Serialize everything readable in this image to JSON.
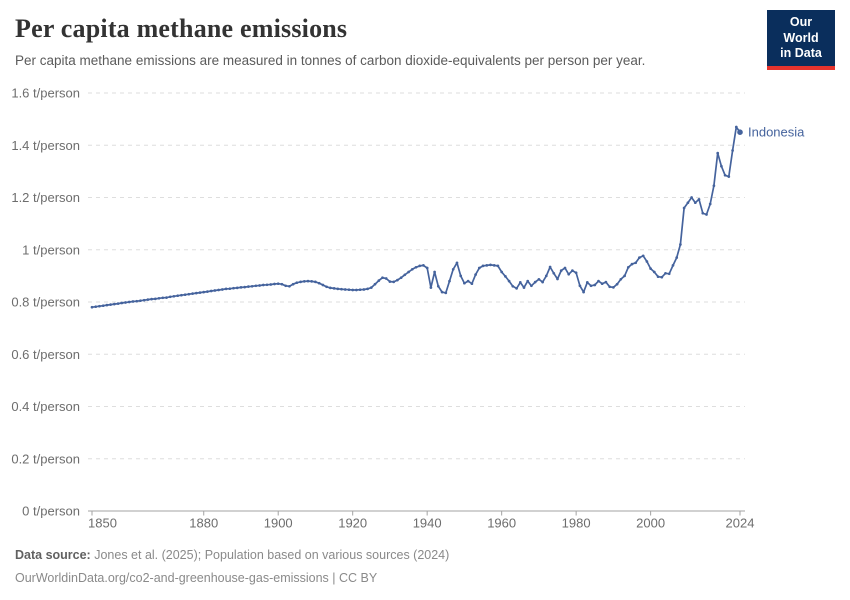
{
  "header": {
    "title": "Per capita methane emissions",
    "subtitle": "Per capita methane emissions are measured in tonnes of carbon dioxide-equivalents per person per year.",
    "logo": {
      "line1": "Our World",
      "line2": "in Data",
      "bg_color": "#0a2e5c",
      "accent_color": "#e5332d"
    }
  },
  "chart_data": {
    "type": "line",
    "title": "Per capita methane emissions",
    "unit": "t/person",
    "xlim": [
      1850,
      2024
    ],
    "ylim": [
      0,
      1.6
    ],
    "grid": "horizontal dashed",
    "grid_color": "#dedede",
    "axis_color": "#a3a3a3",
    "x_ticks": [
      1850,
      1880,
      1900,
      1920,
      1940,
      1960,
      1980,
      2000,
      2024
    ],
    "y_ticks": [
      {
        "value": 0,
        "label": "0 t/person"
      },
      {
        "value": 0.2,
        "label": "0.2 t/person"
      },
      {
        "value": 0.4,
        "label": "0.4 t/person"
      },
      {
        "value": 0.6,
        "label": "0.6 t/person"
      },
      {
        "value": 0.8,
        "label": "0.8 t/person"
      },
      {
        "value": 1,
        "label": "1 t/person"
      },
      {
        "value": 1.2,
        "label": "1.2 t/person"
      },
      {
        "value": 1.4,
        "label": "1.4 t/person"
      },
      {
        "value": 1.6,
        "label": "1.6 t/person"
      }
    ],
    "series": [
      {
        "name": "Indonesia",
        "color": "#45639d",
        "x": [
          1850,
          1851,
          1852,
          1853,
          1854,
          1855,
          1856,
          1857,
          1858,
          1859,
          1860,
          1861,
          1862,
          1863,
          1864,
          1865,
          1866,
          1867,
          1868,
          1869,
          1870,
          1871,
          1872,
          1873,
          1874,
          1875,
          1876,
          1877,
          1878,
          1879,
          1880,
          1881,
          1882,
          1883,
          1884,
          1885,
          1886,
          1887,
          1888,
          1889,
          1890,
          1891,
          1892,
          1893,
          1894,
          1895,
          1896,
          1897,
          1898,
          1899,
          1900,
          1901,
          1902,
          1903,
          1904,
          1905,
          1906,
          1907,
          1908,
          1909,
          1910,
          1911,
          1912,
          1913,
          1914,
          1915,
          1916,
          1917,
          1918,
          1919,
          1920,
          1921,
          1922,
          1923,
          1924,
          1925,
          1926,
          1927,
          1928,
          1929,
          1930,
          1931,
          1932,
          1933,
          1934,
          1935,
          1936,
          1937,
          1938,
          1939,
          1940,
          1941,
          1942,
          1943,
          1944,
          1945,
          1946,
          1947,
          1948,
          1949,
          1950,
          1951,
          1952,
          1953,
          1954,
          1955,
          1956,
          1957,
          1958,
          1959,
          1960,
          1961,
          1962,
          1963,
          1964,
          1965,
          1966,
          1967,
          1968,
          1969,
          1970,
          1971,
          1972,
          1973,
          1974,
          1975,
          1976,
          1977,
          1978,
          1979,
          1980,
          1981,
          1982,
          1983,
          1984,
          1985,
          1986,
          1987,
          1988,
          1989,
          1990,
          1991,
          1992,
          1993,
          1994,
          1995,
          1996,
          1997,
          1998,
          1999,
          2000,
          2001,
          2002,
          2003,
          2004,
          2005,
          2006,
          2007,
          2008,
          2009,
          2010,
          2011,
          2012,
          2013,
          2014,
          2015,
          2016,
          2017,
          2018,
          2019,
          2020,
          2021,
          2022,
          2023,
          2024
        ],
        "values": [
          0.78,
          0.782,
          0.784,
          0.786,
          0.788,
          0.79,
          0.792,
          0.794,
          0.796,
          0.798,
          0.8,
          0.802,
          0.803,
          0.805,
          0.807,
          0.809,
          0.811,
          0.812,
          0.814,
          0.816,
          0.817,
          0.82,
          0.822,
          0.824,
          0.826,
          0.828,
          0.83,
          0.832,
          0.834,
          0.836,
          0.838,
          0.84,
          0.842,
          0.844,
          0.846,
          0.848,
          0.85,
          0.851,
          0.853,
          0.854,
          0.856,
          0.857,
          0.859,
          0.86,
          0.862,
          0.863,
          0.865,
          0.866,
          0.867,
          0.869,
          0.87,
          0.868,
          0.862,
          0.86,
          0.868,
          0.874,
          0.877,
          0.879,
          0.88,
          0.879,
          0.877,
          0.872,
          0.865,
          0.858,
          0.854,
          0.852,
          0.85,
          0.849,
          0.848,
          0.847,
          0.846,
          0.846,
          0.847,
          0.848,
          0.85,
          0.855,
          0.868,
          0.882,
          0.893,
          0.89,
          0.878,
          0.877,
          0.884,
          0.893,
          0.904,
          0.915,
          0.925,
          0.933,
          0.938,
          0.94,
          0.93,
          0.855,
          0.915,
          0.86,
          0.838,
          0.835,
          0.88,
          0.925,
          0.95,
          0.9,
          0.872,
          0.88,
          0.87,
          0.905,
          0.93,
          0.938,
          0.94,
          0.942,
          0.94,
          0.938,
          0.915,
          0.898,
          0.88,
          0.86,
          0.852,
          0.875,
          0.855,
          0.88,
          0.862,
          0.876,
          0.887,
          0.876,
          0.9,
          0.934,
          0.91,
          0.888,
          0.92,
          0.93,
          0.906,
          0.92,
          0.912,
          0.862,
          0.838,
          0.875,
          0.862,
          0.865,
          0.88,
          0.87,
          0.876,
          0.858,
          0.856,
          0.868,
          0.887,
          0.9,
          0.933,
          0.945,
          0.95,
          0.97,
          0.977,
          0.955,
          0.928,
          0.915,
          0.897,
          0.895,
          0.91,
          0.908,
          0.94,
          0.97,
          1.02,
          1.16,
          1.18,
          1.2,
          1.18,
          1.193,
          1.14,
          1.135,
          1.175,
          1.245,
          1.37,
          1.32,
          1.285,
          1.28,
          1.38,
          1.47,
          1.45
        ]
      }
    ]
  },
  "footer": {
    "datasource_label": "Data source:",
    "datasource_text": "Jones et al. (2025); Population based on various sources (2024)",
    "attribution": "OurWorldinData.org/co2-and-greenhouse-gas-emissions | CC BY"
  }
}
